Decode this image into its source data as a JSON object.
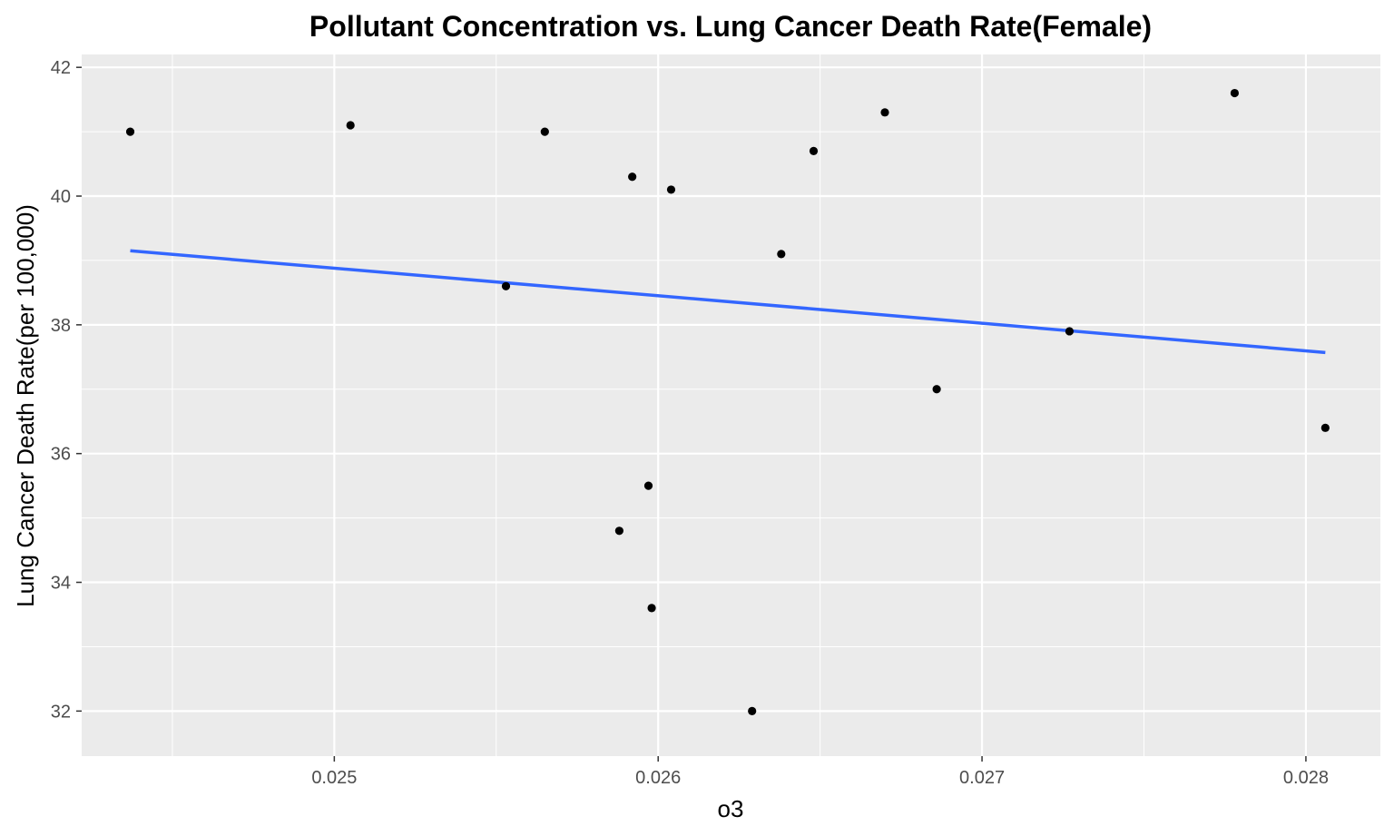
{
  "chart_data": {
    "type": "scatter",
    "title": "Pollutant Concentration vs. Lung Cancer Death Rate(Female)",
    "xlabel": "o3",
    "ylabel": "Lung Cancer Death Rate(per 100,000)",
    "xlim": [
      0.02422,
      0.02823
    ],
    "ylim": [
      31.3,
      42.2
    ],
    "x_ticks": [
      0.025,
      0.026,
      0.027,
      0.028
    ],
    "x_tick_labels": [
      "0.025",
      "0.026",
      "0.027",
      "0.028"
    ],
    "y_ticks": [
      32,
      34,
      36,
      38,
      40,
      42
    ],
    "y_tick_labels": [
      "32",
      "34",
      "36",
      "38",
      "40",
      "42"
    ],
    "grid": true,
    "legend": "none",
    "series": [
      {
        "type": "points",
        "points": [
          {
            "x": 0.02437,
            "y": 41.0
          },
          {
            "x": 0.02505,
            "y": 41.1
          },
          {
            "x": 0.02553,
            "y": 38.6
          },
          {
            "x": 0.02565,
            "y": 41.0
          },
          {
            "x": 0.02588,
            "y": 34.8
          },
          {
            "x": 0.02592,
            "y": 40.3
          },
          {
            "x": 0.02597,
            "y": 35.5
          },
          {
            "x": 0.02598,
            "y": 33.6
          },
          {
            "x": 0.02604,
            "y": 40.1
          },
          {
            "x": 0.02629,
            "y": 32.0
          },
          {
            "x": 0.02638,
            "y": 39.1
          },
          {
            "x": 0.02648,
            "y": 40.7
          },
          {
            "x": 0.0267,
            "y": 41.3
          },
          {
            "x": 0.02686,
            "y": 37.0
          },
          {
            "x": 0.02727,
            "y": 37.9
          },
          {
            "x": 0.02778,
            "y": 41.6
          },
          {
            "x": 0.02806,
            "y": 36.4
          }
        ]
      },
      {
        "type": "fit-line",
        "points": [
          {
            "x": 0.02437,
            "y": 39.15
          },
          {
            "x": 0.02806,
            "y": 37.57
          }
        ]
      }
    ],
    "colors": {
      "panel_background": "#ebebeb",
      "grid_major": "#ffffff",
      "point": "#000000",
      "fit_line": "#3366ff",
      "tick_text": "#4d4d4d"
    }
  }
}
